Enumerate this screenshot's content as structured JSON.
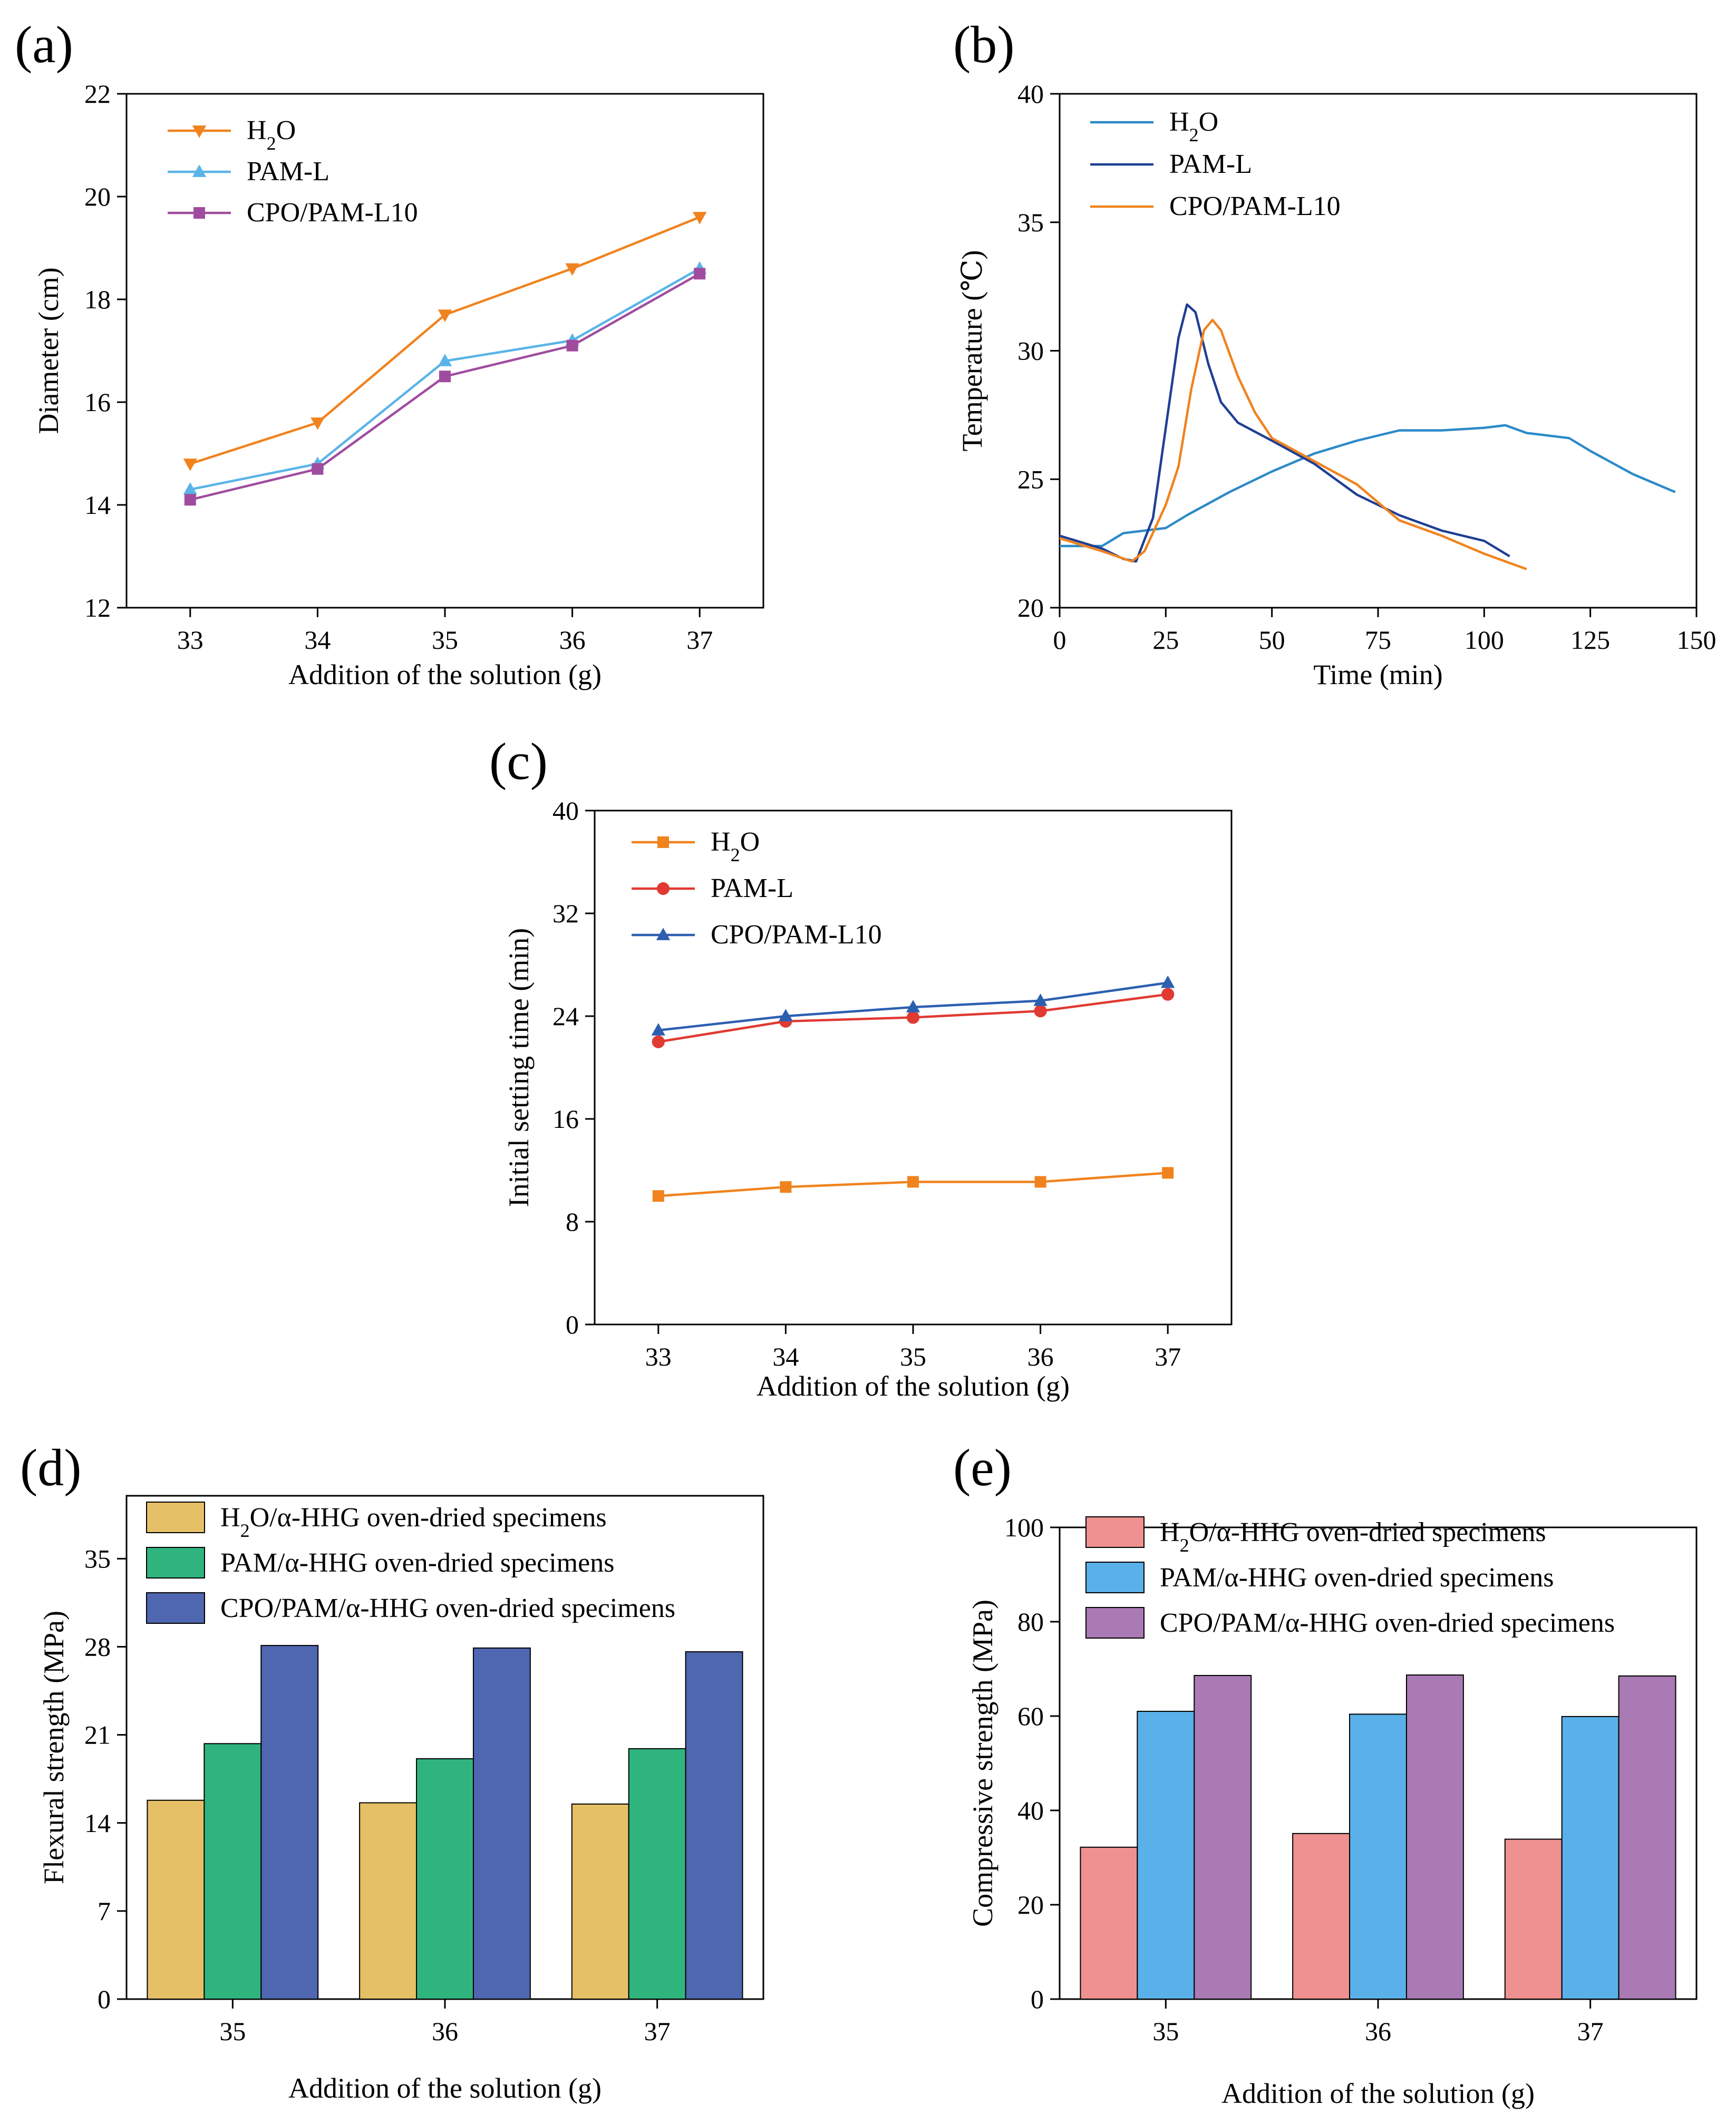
{
  "chart_data": [
    {
      "id": "a",
      "panel_label": "(a)",
      "type": "line",
      "xlabel": "Addition of the solution (g)",
      "ylabel": "Diameter (cm)",
      "x": [
        33,
        34,
        35,
        36,
        37
      ],
      "xlim": [
        32.5,
        37.5
      ],
      "xticks": [
        "33",
        "34",
        "35",
        "36",
        "37"
      ],
      "ylim": [
        12,
        22
      ],
      "yticks": [
        "12",
        "14",
        "16",
        "18",
        "20",
        "22"
      ],
      "legend_position": "top-left",
      "series": [
        {
          "name": "H2O",
          "legend": {
            "pre": "H",
            "sub": "2",
            "post": "O"
          },
          "marker": "triangle-down",
          "color": "#F0831E",
          "values": [
            14.8,
            15.6,
            17.7,
            18.6,
            19.6
          ]
        },
        {
          "name": "PAM-L",
          "legend": {
            "pre": "PAM-L",
            "sub": "",
            "post": ""
          },
          "marker": "triangle-up",
          "color": "#5AB4E8",
          "values": [
            14.3,
            14.8,
            16.8,
            17.2,
            18.6
          ]
        },
        {
          "name": "CPO/PAM-L10",
          "legend": {
            "pre": "CPO/PAM-L10",
            "sub": "",
            "post": ""
          },
          "marker": "square",
          "color": "#A04C9E",
          "values": [
            14.1,
            14.7,
            16.5,
            17.1,
            18.5
          ]
        }
      ]
    },
    {
      "id": "b",
      "panel_label": "(b)",
      "type": "line",
      "xlabel": "Time (min)",
      "ylabel": "Temperature (℃)",
      "xlim": [
        0,
        150
      ],
      "xticks": [
        "0",
        "25",
        "50",
        "75",
        "100",
        "125",
        "150"
      ],
      "ylim": [
        20,
        40
      ],
      "yticks": [
        "20",
        "25",
        "30",
        "35",
        "40"
      ],
      "legend_position": "top-left",
      "series": [
        {
          "name": "H2O",
          "legend": {
            "pre": "H",
            "sub": "2",
            "post": "O"
          },
          "color": "#2C8AC8",
          "points": [
            [
              0,
              22.4
            ],
            [
              5,
              22.4
            ],
            [
              10,
              22.4
            ],
            [
              15,
              22.9
            ],
            [
              20,
              23.0
            ],
            [
              25,
              23.1
            ],
            [
              30,
              23.6
            ],
            [
              40,
              24.5
            ],
            [
              50,
              25.3
            ],
            [
              60,
              26.0
            ],
            [
              70,
              26.5
            ],
            [
              80,
              26.9
            ],
            [
              90,
              26.9
            ],
            [
              100,
              27.0
            ],
            [
              105,
              27.1
            ],
            [
              110,
              26.8
            ],
            [
              120,
              26.6
            ],
            [
              125,
              26.1
            ],
            [
              135,
              25.2
            ],
            [
              145,
              24.5
            ]
          ]
        },
        {
          "name": "PAM-L",
          "legend": {
            "pre": "PAM-L",
            "sub": "",
            "post": ""
          },
          "color": "#1F3F94",
          "points": [
            [
              0,
              22.8
            ],
            [
              10,
              22.3
            ],
            [
              15,
              21.9
            ],
            [
              18,
              21.8
            ],
            [
              22,
              23.5
            ],
            [
              25,
              27.0
            ],
            [
              28,
              30.5
            ],
            [
              30,
              31.8
            ],
            [
              32,
              31.5
            ],
            [
              35,
              29.5
            ],
            [
              38,
              28.0
            ],
            [
              42,
              27.2
            ],
            [
              50,
              26.5
            ],
            [
              60,
              25.6
            ],
            [
              70,
              24.4
            ],
            [
              80,
              23.6
            ],
            [
              90,
              23.0
            ],
            [
              100,
              22.6
            ],
            [
              106,
              22.0
            ]
          ]
        },
        {
          "name": "CPO/PAM-L10",
          "legend": {
            "pre": "CPO/PAM-L10",
            "sub": "",
            "post": ""
          },
          "color": "#F0831E",
          "points": [
            [
              0,
              22.7
            ],
            [
              10,
              22.2
            ],
            [
              17,
              21.8
            ],
            [
              20,
              22.2
            ],
            [
              25,
              24.0
            ],
            [
              28,
              25.5
            ],
            [
              31,
              28.5
            ],
            [
              34,
              30.8
            ],
            [
              36,
              31.2
            ],
            [
              38,
              30.8
            ],
            [
              42,
              29.0
            ],
            [
              46,
              27.6
            ],
            [
              50,
              26.6
            ],
            [
              60,
              25.7
            ],
            [
              70,
              24.8
            ],
            [
              80,
              23.4
            ],
            [
              90,
              22.8
            ],
            [
              100,
              22.1
            ],
            [
              110,
              21.5
            ]
          ]
        }
      ]
    },
    {
      "id": "c",
      "panel_label": "(c)",
      "type": "line",
      "xlabel": "Addition of the solution (g)",
      "ylabel": "Initial setting time (min)",
      "x": [
        33,
        34,
        35,
        36,
        37
      ],
      "xlim": [
        32.5,
        37.5
      ],
      "xticks": [
        "33",
        "34",
        "35",
        "36",
        "37"
      ],
      "ylim": [
        0,
        40
      ],
      "yticks": [
        "0",
        "8",
        "16",
        "24",
        "32",
        "40"
      ],
      "legend_position": "top-left",
      "series": [
        {
          "name": "H2O",
          "legend": {
            "pre": "H",
            "sub": "2",
            "post": "O"
          },
          "marker": "square",
          "color": "#F0831E",
          "values": [
            10.0,
            10.7,
            11.1,
            11.1,
            11.8
          ]
        },
        {
          "name": "PAM-L",
          "legend": {
            "pre": "PAM-L",
            "sub": "",
            "post": ""
          },
          "marker": "circle",
          "color": "#E03A32",
          "values": [
            22.0,
            23.6,
            23.9,
            24.4,
            25.7
          ]
        },
        {
          "name": "CPO/PAM-L10",
          "legend": {
            "pre": "CPO/PAM-L10",
            "sub": "",
            "post": ""
          },
          "marker": "triangle-up",
          "color": "#2C5FB0",
          "values": [
            22.9,
            24.0,
            24.7,
            25.2,
            26.6
          ]
        }
      ]
    },
    {
      "id": "d",
      "panel_label": "(d)",
      "type": "bar",
      "xlabel": "Addition of the solution (g)",
      "ylabel": "Flexural strength (MPa)",
      "categories": [
        "35",
        "36",
        "37"
      ],
      "ylim": [
        0,
        40
      ],
      "yticks": [
        "0",
        "7",
        "14",
        "21",
        "28",
        "35"
      ],
      "legend_position": "top-left",
      "series": [
        {
          "name": "H2O/α-HHG oven-dried specimens",
          "legend": {
            "pre": "H",
            "sub": "2",
            "post": "O/α-HHG oven-dried specimens"
          },
          "color": "#E6C066",
          "values": [
            15.8,
            15.6,
            15.5
          ]
        },
        {
          "name": "PAM/α-HHG oven-dried specimens",
          "legend": {
            "pre": "PAM/α-HHG oven-dried specimens",
            "sub": "",
            "post": ""
          },
          "color": "#2FB47E",
          "values": [
            20.3,
            19.1,
            19.9
          ]
        },
        {
          "name": "CPO/PAM/α-HHG oven-dried specimens",
          "legend": {
            "pre": "CPO/PAM/α-HHG oven-dried specimens",
            "sub": "",
            "post": ""
          },
          "color": "#4F66B0",
          "values": [
            28.1,
            27.9,
            27.6
          ]
        }
      ]
    },
    {
      "id": "e",
      "panel_label": "(e)",
      "type": "bar",
      "xlabel": "Addition of the solution (g)",
      "ylabel": "Compressive strength (MPa)",
      "categories": [
        "35",
        "36",
        "37"
      ],
      "ylim": [
        0,
        100
      ],
      "yticks": [
        "0",
        "20",
        "40",
        "60",
        "80",
        "100"
      ],
      "legend_position": "top-left",
      "series": [
        {
          "name": "H2O/α-HHG oven-dried specimens",
          "legend": {
            "pre": "H",
            "sub": "2",
            "post": "O/α-HHG oven-dried specimens"
          },
          "color": "#EE9190",
          "values": [
            32.2,
            35.1,
            33.9
          ]
        },
        {
          "name": "PAM/α-HHG oven-dried specimens",
          "legend": {
            "pre": "PAM/α-HHG oven-dried specimens",
            "sub": "",
            "post": ""
          },
          "color": "#5AB0E8",
          "values": [
            61.0,
            60.4,
            59.9
          ]
        },
        {
          "name": "CPO/PAM/α-HHG oven-dried specimens",
          "legend": {
            "pre": "CPO/PAM/α-HHG oven-dried specimens",
            "sub": "",
            "post": ""
          },
          "color": "#A97AB3",
          "values": [
            68.6,
            68.7,
            68.5
          ]
        }
      ]
    }
  ]
}
